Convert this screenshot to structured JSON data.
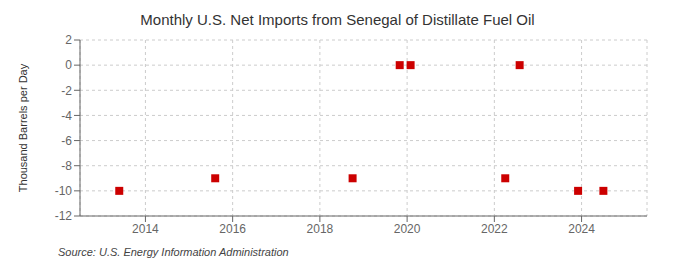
{
  "chart_data": {
    "type": "scatter",
    "title": "Monthly U.S. Net Imports from Senegal of Distillate Fuel Oil",
    "ylabel": "Thousand Barrels per Day",
    "annotations": [
      "Source: U.S. Energy Information Administration"
    ],
    "x": [
      2013.4,
      2015.6,
      2018.75,
      2019.83,
      2020.08,
      2022.25,
      2022.58,
      2023.92,
      2024.5
    ],
    "values": [
      -10,
      -9,
      -9,
      0,
      0,
      -9,
      0,
      -10,
      -10
    ],
    "color": "#cc0000",
    "marker": "square",
    "xlim": [
      2012.5,
      2025.5
    ],
    "ylim": [
      -12,
      2
    ],
    "xticks": [
      2014,
      2016,
      2018,
      2020,
      2022,
      2024
    ],
    "yticks": [
      2,
      0,
      -2,
      -4,
      -6,
      -8,
      -10,
      -12
    ],
    "grid": true
  }
}
